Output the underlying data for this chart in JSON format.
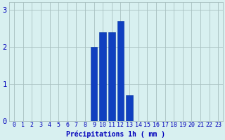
{
  "hours": [
    0,
    1,
    2,
    3,
    4,
    5,
    6,
    7,
    8,
    9,
    10,
    11,
    12,
    13,
    14,
    15,
    16,
    17,
    18,
    19,
    20,
    21,
    22,
    23
  ],
  "values": [
    0,
    0,
    0,
    0,
    0,
    0,
    0,
    0,
    0,
    2.0,
    2.4,
    2.4,
    2.7,
    0.7,
    0,
    0,
    0,
    0,
    0,
    0,
    0,
    0,
    0,
    0
  ],
  "bar_color": "#1040c0",
  "bg_color": "#d8f0f0",
  "grid_color": "#a8c0c0",
  "tick_color": "#0000bb",
  "xlabel": "Précipitations 1h ( mm )",
  "ylim": [
    0,
    3.2
  ],
  "yticks": [
    0,
    1,
    2,
    3
  ],
  "xlabel_color": "#0000bb",
  "xlabel_fontsize": 7.0,
  "tick_fontsize": 6.0,
  "ytick_fontsize": 7.5
}
